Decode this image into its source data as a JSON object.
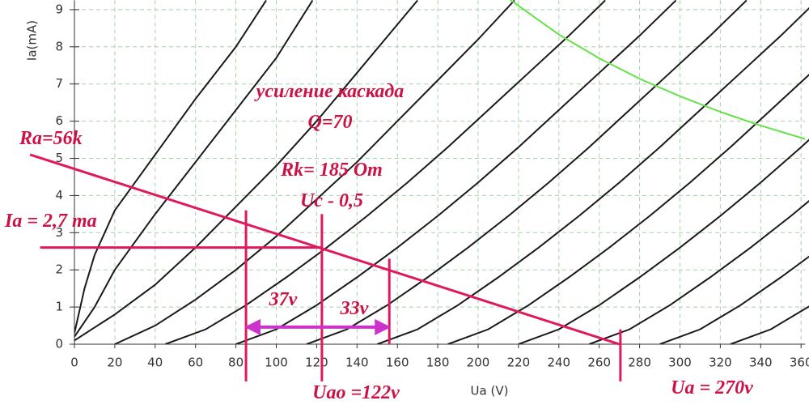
{
  "chart_data": {
    "type": "line",
    "x_label": "Ua (V)",
    "y_label": "Ia(mA)",
    "xlim": [
      0,
      362
    ],
    "ylim": [
      0,
      9.25
    ],
    "xticks": [
      0,
      20,
      40,
      60,
      80,
      100,
      120,
      140,
      160,
      180,
      200,
      220,
      240,
      260,
      280,
      300,
      320,
      340,
      360
    ],
    "yticks": [
      0,
      1,
      2,
      3,
      4,
      5,
      6,
      7,
      8,
      9
    ],
    "grid": true,
    "grid_color": "#a9cfa9",
    "curve_color": "#1a1a1a",
    "series": [
      {
        "x": [
          0,
          5,
          10,
          20,
          40,
          60,
          80,
          95
        ],
        "values": [
          0.3,
          1.5,
          2.4,
          3.6,
          5.1,
          6.6,
          8.0,
          9.25
        ]
      },
      {
        "x": [
          0,
          10,
          20,
          40,
          60,
          80,
          100,
          118
        ],
        "values": [
          0.2,
          1.0,
          2.0,
          3.5,
          4.9,
          6.3,
          7.7,
          9.25
        ]
      },
      {
        "x": [
          0,
          20,
          40,
          60,
          80,
          100,
          120,
          140,
          160,
          170
        ],
        "values": [
          0.1,
          0.8,
          1.6,
          2.6,
          3.7,
          4.8,
          6.0,
          7.3,
          8.6,
          9.25
        ]
      },
      {
        "x": [
          20,
          40,
          60,
          80,
          100,
          120,
          140,
          160,
          180,
          200,
          218
        ],
        "values": [
          0,
          0.5,
          1.2,
          2.0,
          2.9,
          3.9,
          4.9,
          6.0,
          7.1,
          8.2,
          9.25
        ]
      },
      {
        "x": [
          45,
          65,
          85,
          105,
          125,
          145,
          165,
          185,
          205,
          225,
          245,
          263
        ],
        "values": [
          0,
          0.4,
          1.05,
          1.8,
          2.6,
          3.45,
          4.35,
          5.3,
          6.3,
          7.3,
          8.3,
          9.25
        ]
      },
      {
        "x": [
          80,
          100,
          120,
          140,
          160,
          180,
          200,
          220,
          240,
          260,
          280,
          298
        ],
        "values": [
          0,
          0.4,
          1.05,
          1.8,
          2.6,
          3.45,
          4.35,
          5.3,
          6.3,
          7.3,
          8.3,
          9.25
        ]
      },
      {
        "x": [
          115,
          135,
          155,
          175,
          195,
          215,
          235,
          255,
          275,
          295,
          315,
          333
        ],
        "values": [
          0,
          0.4,
          1.05,
          1.8,
          2.6,
          3.45,
          4.35,
          5.3,
          6.3,
          7.3,
          8.3,
          9.25
        ]
      },
      {
        "x": [
          150,
          170,
          190,
          210,
          230,
          250,
          270,
          290,
          310,
          330,
          350,
          368
        ],
        "values": [
          0,
          0.4,
          1.05,
          1.8,
          2.6,
          3.45,
          4.35,
          5.3,
          6.3,
          7.3,
          8.3,
          9.25
        ]
      },
      {
        "x": [
          185,
          205,
          225,
          245,
          265,
          285,
          305,
          325,
          345,
          365
        ],
        "values": [
          0,
          0.4,
          1.05,
          1.8,
          2.6,
          3.45,
          4.35,
          5.3,
          6.3,
          7.3
        ]
      },
      {
        "x": [
          220,
          240,
          260,
          280,
          300,
          320,
          340,
          360,
          380
        ],
        "values": [
          0,
          0.4,
          1.05,
          1.8,
          2.6,
          3.45,
          4.35,
          5.3,
          6.3
        ]
      },
      {
        "x": [
          255,
          275,
          295,
          315,
          335,
          355,
          375
        ],
        "values": [
          0,
          0.4,
          1.05,
          1.8,
          2.6,
          3.45,
          4.35
        ]
      },
      {
        "x": [
          290,
          310,
          330,
          350,
          370
        ],
        "values": [
          0,
          0.4,
          1.05,
          1.8,
          2.6
        ]
      },
      {
        "x": [
          325,
          345,
          365
        ],
        "values": [
          0,
          0.4,
          1.05
        ]
      },
      {
        "x": [
          216,
          240,
          260,
          280,
          300,
          320,
          340,
          362
        ],
        "values": [
          9.26,
          8.33,
          7.69,
          7.14,
          6.67,
          6.25,
          5.88,
          5.52
        ],
        "color": "#66e04a"
      }
    ],
    "lines": [
      {
        "x": [
          -22,
          270
        ],
        "values": [
          5.1,
          0
        ],
        "color": "#e0185e"
      },
      {
        "x": [
          -17,
          123
        ],
        "values": [
          2.6,
          2.6
        ],
        "color": "#e0185e"
      },
      {
        "x": [
          85,
          85
        ],
        "values": [
          3.6,
          -1.0
        ],
        "color": "#e0185e"
      },
      {
        "x": [
          122.6,
          122.6
        ],
        "values": [
          3.5,
          -1.0
        ],
        "color": "#e0185e"
      },
      {
        "x": [
          156,
          156
        ],
        "values": [
          2.3,
          0
        ],
        "color": "#e0185e"
      },
      {
        "x": [
          270.5,
          270.5
        ],
        "values": [
          0.4,
          -1.0
        ],
        "color": "#e0185e"
      }
    ],
    "arrow": {
      "x": [
        85,
        156
      ],
      "values": [
        0.46,
        0.46
      ],
      "color": "#cc33cc"
    },
    "annotations": [
      "усиление каскада",
      "Q=70",
      "Ra=56k",
      "Rk= 185 Om",
      "Uc - 0,5",
      "Ia = 2,7 ma",
      "37v",
      "33v",
      "Uao =122v",
      "Ua = 270v"
    ]
  }
}
